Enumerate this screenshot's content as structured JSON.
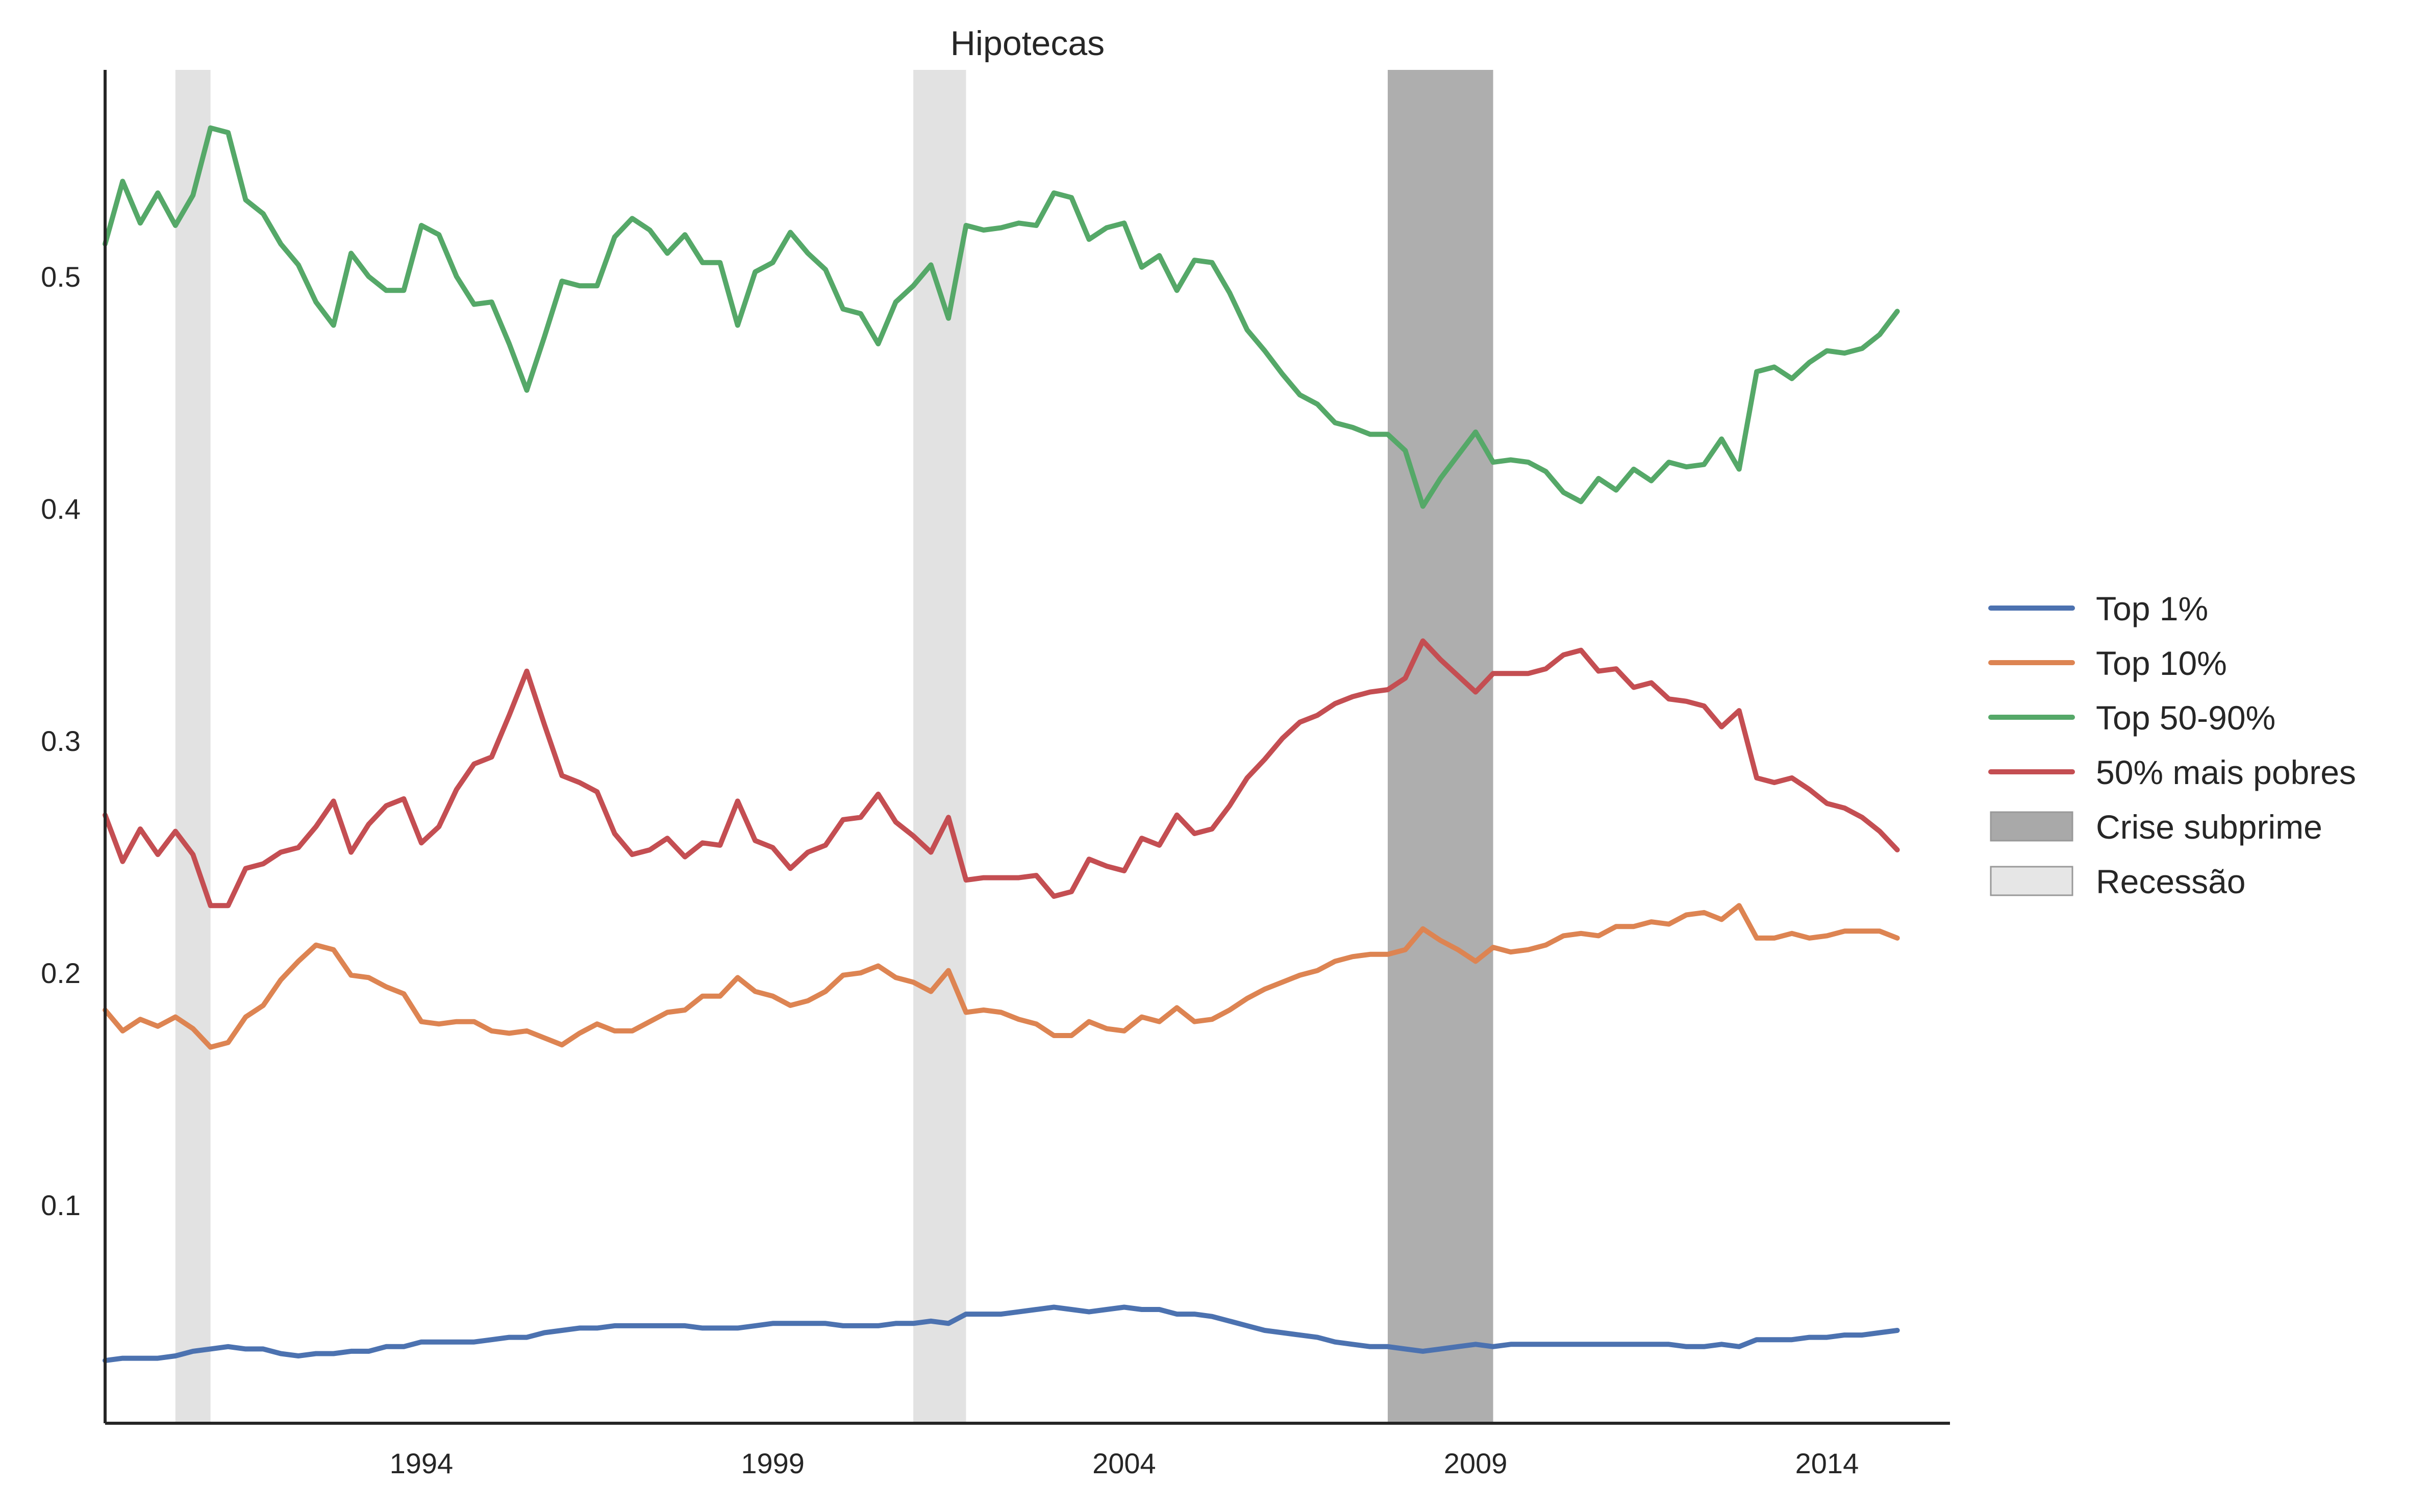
{
  "chart_data": {
    "type": "line",
    "title": "Hipotecas",
    "xlabel": "",
    "ylabel": "",
    "xlim": [
      1989.5,
      2015.75
    ],
    "ylim": [
      0.006,
      0.589
    ],
    "x_ticks": [
      1994,
      1999,
      2004,
      2009,
      2014
    ],
    "y_ticks": [
      0.1,
      0.2,
      0.3,
      0.4,
      0.5
    ],
    "grid": false,
    "legend_position": "right",
    "start_year": 1989.5,
    "step": 0.25,
    "series": [
      {
        "name": "Top 1%",
        "color": "#4c72b0",
        "values": [
          0.033,
          0.034,
          0.034,
          0.034,
          0.035,
          0.037,
          0.038,
          0.039,
          0.038,
          0.038,
          0.036,
          0.035,
          0.036,
          0.036,
          0.037,
          0.037,
          0.039,
          0.039,
          0.041,
          0.041,
          0.041,
          0.041,
          0.042,
          0.043,
          0.043,
          0.045,
          0.046,
          0.047,
          0.047,
          0.048,
          0.048,
          0.048,
          0.048,
          0.048,
          0.047,
          0.047,
          0.047,
          0.048,
          0.049,
          0.049,
          0.049,
          0.049,
          0.048,
          0.048,
          0.048,
          0.049,
          0.049,
          0.05,
          0.049,
          0.053,
          0.053,
          0.053,
          0.054,
          0.055,
          0.056,
          0.055,
          0.054,
          0.055,
          0.056,
          0.055,
          0.055,
          0.053,
          0.053,
          0.052,
          0.05,
          0.048,
          0.046,
          0.045,
          0.044,
          0.043,
          0.041,
          0.04,
          0.039,
          0.039,
          0.038,
          0.037,
          0.038,
          0.039,
          0.04,
          0.039,
          0.04,
          0.04,
          0.04,
          0.04,
          0.04,
          0.04,
          0.04,
          0.04,
          0.04,
          0.04,
          0.039,
          0.039,
          0.04,
          0.039,
          0.042,
          0.042,
          0.042,
          0.043,
          0.043,
          0.044,
          0.044,
          0.045,
          0.046
        ]
      },
      {
        "name": "Top 10%",
        "color": "#dd8452",
        "values": [
          0.184,
          0.175,
          0.18,
          0.177,
          0.181,
          0.176,
          0.168,
          0.17,
          0.181,
          0.186,
          0.197,
          0.205,
          0.212,
          0.21,
          0.199,
          0.198,
          0.194,
          0.191,
          0.179,
          0.178,
          0.179,
          0.179,
          0.175,
          0.174,
          0.175,
          0.172,
          0.169,
          0.174,
          0.178,
          0.175,
          0.175,
          0.179,
          0.183,
          0.184,
          0.19,
          0.19,
          0.198,
          0.192,
          0.19,
          0.186,
          0.188,
          0.192,
          0.199,
          0.2,
          0.203,
          0.198,
          0.196,
          0.192,
          0.201,
          0.183,
          0.184,
          0.183,
          0.18,
          0.178,
          0.173,
          0.173,
          0.179,
          0.176,
          0.175,
          0.181,
          0.179,
          0.185,
          0.179,
          0.18,
          0.184,
          0.189,
          0.193,
          0.196,
          0.199,
          0.201,
          0.205,
          0.207,
          0.208,
          0.208,
          0.21,
          0.219,
          0.214,
          0.21,
          0.205,
          0.211,
          0.209,
          0.21,
          0.212,
          0.216,
          0.217,
          0.216,
          0.22,
          0.22,
          0.222,
          0.221,
          0.225,
          0.226,
          0.223,
          0.229,
          0.215,
          0.215,
          0.217,
          0.215,
          0.216,
          0.218,
          0.218,
          0.218,
          0.215
        ]
      },
      {
        "name": "Top 50-90%",
        "color": "#55a868",
        "values": [
          0.514,
          0.541,
          0.523,
          0.536,
          0.522,
          0.535,
          0.564,
          0.562,
          0.533,
          0.527,
          0.514,
          0.505,
          0.489,
          0.479,
          0.51,
          0.5,
          0.494,
          0.494,
          0.522,
          0.518,
          0.5,
          0.488,
          0.489,
          0.471,
          0.451,
          0.474,
          0.498,
          0.496,
          0.496,
          0.517,
          0.525,
          0.52,
          0.51,
          0.518,
          0.506,
          0.506,
          0.479,
          0.502,
          0.506,
          0.519,
          0.51,
          0.503,
          0.486,
          0.484,
          0.471,
          0.489,
          0.496,
          0.505,
          0.482,
          0.522,
          0.52,
          0.521,
          0.523,
          0.522,
          0.536,
          0.534,
          0.516,
          0.521,
          0.523,
          0.504,
          0.509,
          0.494,
          0.507,
          0.506,
          0.493,
          0.477,
          0.468,
          0.458,
          0.449,
          0.445,
          0.437,
          0.435,
          0.432,
          0.432,
          0.425,
          0.401,
          0.413,
          0.423,
          0.433,
          0.42,
          0.421,
          0.42,
          0.416,
          0.407,
          0.403,
          0.413,
          0.408,
          0.417,
          0.412,
          0.42,
          0.418,
          0.419,
          0.43,
          0.417,
          0.459,
          0.461,
          0.456,
          0.463,
          0.468,
          0.467,
          0.469,
          0.475,
          0.485
        ]
      },
      {
        "name": "50% mais pobres",
        "color": "#c44e52",
        "values": [
          0.268,
          0.248,
          0.262,
          0.251,
          0.261,
          0.251,
          0.229,
          0.229,
          0.245,
          0.247,
          0.252,
          0.254,
          0.263,
          0.274,
          0.252,
          0.264,
          0.272,
          0.275,
          0.256,
          0.263,
          0.279,
          0.29,
          0.293,
          0.311,
          0.33,
          0.307,
          0.285,
          0.282,
          0.278,
          0.26,
          0.251,
          0.253,
          0.258,
          0.25,
          0.256,
          0.255,
          0.274,
          0.257,
          0.254,
          0.245,
          0.252,
          0.255,
          0.266,
          0.267,
          0.277,
          0.265,
          0.259,
          0.252,
          0.267,
          0.24,
          0.241,
          0.241,
          0.241,
          0.242,
          0.233,
          0.235,
          0.249,
          0.246,
          0.244,
          0.258,
          0.255,
          0.268,
          0.26,
          0.262,
          0.272,
          0.284,
          0.292,
          0.301,
          0.308,
          0.311,
          0.316,
          0.319,
          0.321,
          0.322,
          0.327,
          0.343,
          0.335,
          0.328,
          0.321,
          0.329,
          0.329,
          0.329,
          0.331,
          0.337,
          0.339,
          0.33,
          0.331,
          0.323,
          0.325,
          0.318,
          0.317,
          0.315,
          0.306,
          0.313,
          0.284,
          0.282,
          0.284,
          0.279,
          0.273,
          0.271,
          0.267,
          0.261,
          0.253
        ]
      }
    ],
    "shaded_regions": [
      {
        "name": "Recessão",
        "color": "#d8d8d8",
        "opacity": 0.75,
        "ranges": [
          [
            1990.5,
            1991.0
          ],
          [
            2001.0,
            2001.75
          ]
        ]
      },
      {
        "name": "Crise subprime",
        "color": "#9a9a9a",
        "opacity": 0.8,
        "ranges": [
          [
            2007.75,
            2009.25
          ]
        ]
      }
    ]
  },
  "legend": {
    "items": [
      {
        "label": "Top 1%",
        "kind": "line",
        "color": "#4c72b0"
      },
      {
        "label": "Top 10%",
        "kind": "line",
        "color": "#dd8452"
      },
      {
        "label": "Top 50-90%",
        "kind": "line",
        "color": "#55a868"
      },
      {
        "label": "50% mais pobres",
        "kind": "line",
        "color": "#c44e52"
      },
      {
        "label": "Crise subprime",
        "kind": "patch",
        "color": "#a9a9a9"
      },
      {
        "label": "Recessão",
        "kind": "patch",
        "color": "#e6e6e6"
      }
    ]
  }
}
